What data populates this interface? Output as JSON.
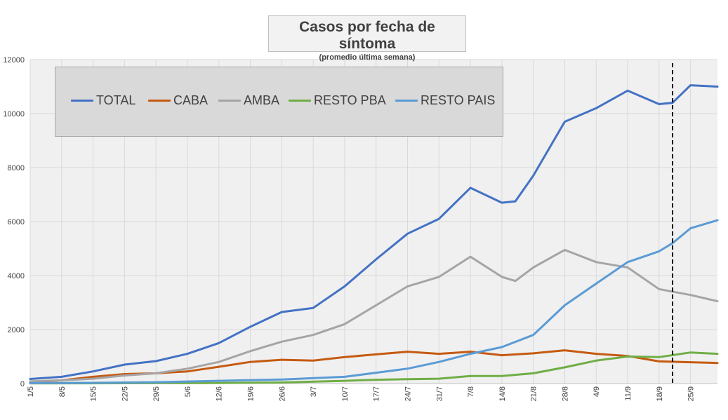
{
  "chart_data": {
    "type": "line",
    "title": "Casos por fecha de síntoma",
    "subtitle": "(promedio última semana)",
    "xlabel": "",
    "ylabel": "",
    "ylim": [
      0,
      12000
    ],
    "yticks": [
      0,
      2000,
      4000,
      6000,
      8000,
      10000,
      12000
    ],
    "xlim": [
      "2020-05-01",
      "2020-10-01"
    ],
    "xticks": [
      {
        "date": "2020-05-01",
        "label": "1/5"
      },
      {
        "date": "2020-05-08",
        "label": "8/5"
      },
      {
        "date": "2020-05-15",
        "label": "15/5"
      },
      {
        "date": "2020-05-22",
        "label": "22/5"
      },
      {
        "date": "2020-05-29",
        "label": "29/5"
      },
      {
        "date": "2020-06-05",
        "label": "5/6"
      },
      {
        "date": "2020-06-12",
        "label": "12/6"
      },
      {
        "date": "2020-06-19",
        "label": "19/6"
      },
      {
        "date": "2020-06-26",
        "label": "26/6"
      },
      {
        "date": "2020-07-03",
        "label": "3/7"
      },
      {
        "date": "2020-07-10",
        "label": "10/7"
      },
      {
        "date": "2020-07-17",
        "label": "17/7"
      },
      {
        "date": "2020-07-24",
        "label": "24/7"
      },
      {
        "date": "2020-07-31",
        "label": "31/7"
      },
      {
        "date": "2020-08-07",
        "label": "7/8"
      },
      {
        "date": "2020-08-14",
        "label": "14/8"
      },
      {
        "date": "2020-08-21",
        "label": "21/8"
      },
      {
        "date": "2020-08-28",
        "label": "28/8"
      },
      {
        "date": "2020-09-04",
        "label": "4/9"
      },
      {
        "date": "2020-09-11",
        "label": "11/9"
      },
      {
        "date": "2020-09-18",
        "label": "18/9"
      },
      {
        "date": "2020-09-25",
        "label": "25/9"
      }
    ],
    "grid": true,
    "legend_position": "top-left",
    "reference_line": {
      "date": "2020-09-21",
      "style": "dashed",
      "color": "#000000"
    },
    "series": [
      {
        "name": "TOTAL",
        "color": "#4472c4",
        "points": [
          [
            "2020-05-01",
            170
          ],
          [
            "2020-05-08",
            250
          ],
          [
            "2020-05-15",
            450
          ],
          [
            "2020-05-22",
            700
          ],
          [
            "2020-05-29",
            830
          ],
          [
            "2020-06-05",
            1100
          ],
          [
            "2020-06-12",
            1500
          ],
          [
            "2020-06-19",
            2100
          ],
          [
            "2020-06-26",
            2650
          ],
          [
            "2020-07-03",
            2800
          ],
          [
            "2020-07-10",
            3600
          ],
          [
            "2020-07-17",
            4600
          ],
          [
            "2020-07-24",
            5550
          ],
          [
            "2020-07-31",
            6100
          ],
          [
            "2020-08-07",
            7250
          ],
          [
            "2020-08-14",
            6700
          ],
          [
            "2020-08-17",
            6750
          ],
          [
            "2020-08-21",
            7700
          ],
          [
            "2020-08-28",
            9700
          ],
          [
            "2020-09-04",
            10200
          ],
          [
            "2020-09-11",
            10850
          ],
          [
            "2020-09-18",
            10350
          ],
          [
            "2020-09-21",
            10400
          ],
          [
            "2020-09-25",
            11050
          ],
          [
            "2020-10-01",
            11000
          ]
        ]
      },
      {
        "name": "CABA",
        "color": "#c55a11",
        "points": [
          [
            "2020-05-01",
            50
          ],
          [
            "2020-05-08",
            120
          ],
          [
            "2020-05-15",
            250
          ],
          [
            "2020-05-22",
            350
          ],
          [
            "2020-05-29",
            380
          ],
          [
            "2020-06-05",
            450
          ],
          [
            "2020-06-12",
            620
          ],
          [
            "2020-06-19",
            800
          ],
          [
            "2020-06-26",
            880
          ],
          [
            "2020-07-03",
            850
          ],
          [
            "2020-07-10",
            980
          ],
          [
            "2020-07-17",
            1080
          ],
          [
            "2020-07-24",
            1180
          ],
          [
            "2020-07-31",
            1100
          ],
          [
            "2020-08-07",
            1180
          ],
          [
            "2020-08-14",
            1050
          ],
          [
            "2020-08-21",
            1120
          ],
          [
            "2020-08-28",
            1230
          ],
          [
            "2020-09-04",
            1100
          ],
          [
            "2020-09-11",
            1020
          ],
          [
            "2020-09-18",
            820
          ],
          [
            "2020-09-25",
            790
          ],
          [
            "2020-10-01",
            760
          ]
        ]
      },
      {
        "name": "AMBA",
        "color": "#a5a5a5",
        "points": [
          [
            "2020-05-01",
            80
          ],
          [
            "2020-05-08",
            120
          ],
          [
            "2020-05-15",
            180
          ],
          [
            "2020-05-22",
            300
          ],
          [
            "2020-05-29",
            380
          ],
          [
            "2020-06-05",
            550
          ],
          [
            "2020-06-12",
            800
          ],
          [
            "2020-06-19",
            1200
          ],
          [
            "2020-06-26",
            1550
          ],
          [
            "2020-07-03",
            1800
          ],
          [
            "2020-07-10",
            2200
          ],
          [
            "2020-07-17",
            2900
          ],
          [
            "2020-07-24",
            3600
          ],
          [
            "2020-07-31",
            3950
          ],
          [
            "2020-08-07",
            4700
          ],
          [
            "2020-08-14",
            3950
          ],
          [
            "2020-08-17",
            3800
          ],
          [
            "2020-08-21",
            4300
          ],
          [
            "2020-08-28",
            4950
          ],
          [
            "2020-09-04",
            4500
          ],
          [
            "2020-09-11",
            4300
          ],
          [
            "2020-09-18",
            3500
          ],
          [
            "2020-09-25",
            3280
          ],
          [
            "2020-10-01",
            3050
          ]
        ]
      },
      {
        "name": "RESTO PBA",
        "color": "#70ad47",
        "points": [
          [
            "2020-05-01",
            5
          ],
          [
            "2020-05-15",
            10
          ],
          [
            "2020-05-29",
            15
          ],
          [
            "2020-06-12",
            20
          ],
          [
            "2020-06-26",
            40
          ],
          [
            "2020-07-10",
            100
          ],
          [
            "2020-07-17",
            140
          ],
          [
            "2020-07-24",
            160
          ],
          [
            "2020-07-31",
            180
          ],
          [
            "2020-08-07",
            280
          ],
          [
            "2020-08-14",
            280
          ],
          [
            "2020-08-21",
            380
          ],
          [
            "2020-08-28",
            600
          ],
          [
            "2020-09-04",
            850
          ],
          [
            "2020-09-11",
            1000
          ],
          [
            "2020-09-18",
            980
          ],
          [
            "2020-09-25",
            1150
          ],
          [
            "2020-10-01",
            1100
          ]
        ]
      },
      {
        "name": "RESTO PAIS",
        "color": "#5b9bd5",
        "points": [
          [
            "2020-05-01",
            15
          ],
          [
            "2020-05-15",
            25
          ],
          [
            "2020-05-29",
            50
          ],
          [
            "2020-06-12",
            100
          ],
          [
            "2020-06-26",
            150
          ],
          [
            "2020-07-10",
            250
          ],
          [
            "2020-07-17",
            400
          ],
          [
            "2020-07-24",
            550
          ],
          [
            "2020-07-31",
            800
          ],
          [
            "2020-08-07",
            1100
          ],
          [
            "2020-08-14",
            1350
          ],
          [
            "2020-08-21",
            1800
          ],
          [
            "2020-08-28",
            2900
          ],
          [
            "2020-09-04",
            3700
          ],
          [
            "2020-09-11",
            4500
          ],
          [
            "2020-09-18",
            4900
          ],
          [
            "2020-09-21",
            5200
          ],
          [
            "2020-09-25",
            5750
          ],
          [
            "2020-10-01",
            6050
          ]
        ]
      }
    ]
  }
}
